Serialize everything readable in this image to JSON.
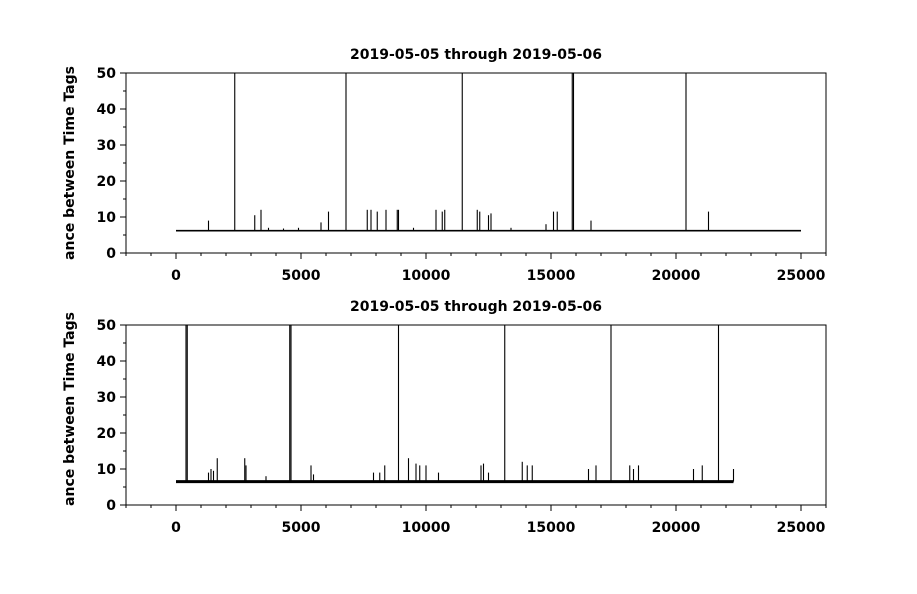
{
  "chart_data": [
    {
      "type": "line",
      "title": "2019-05-05 through 2019-05-06",
      "xlabel": "",
      "ylabel": "ance between Time Tags",
      "xlim": [
        -2000,
        26000
      ],
      "ylim": [
        0,
        50
      ],
      "xticks": [
        0,
        5000,
        10000,
        15000,
        20000,
        25000
      ],
      "yticks": [
        0,
        10,
        20,
        30,
        40,
        50
      ],
      "grid": false,
      "baseline": 6.2,
      "x_range": [
        0,
        25000
      ],
      "spikes": [
        {
          "x": 1300,
          "y": 9
        },
        {
          "x": 2350,
          "y": 50
        },
        {
          "x": 3150,
          "y": 10.5
        },
        {
          "x": 3400,
          "y": 12
        },
        {
          "x": 3700,
          "y": 7
        },
        {
          "x": 4300,
          "y": 6.8
        },
        {
          "x": 4900,
          "y": 7
        },
        {
          "x": 5800,
          "y": 8.5
        },
        {
          "x": 6100,
          "y": 11.5
        },
        {
          "x": 6800,
          "y": 50
        },
        {
          "x": 7650,
          "y": 12
        },
        {
          "x": 7800,
          "y": 12
        },
        {
          "x": 8050,
          "y": 11.5
        },
        {
          "x": 8400,
          "y": 12
        },
        {
          "x": 8850,
          "y": 12
        },
        {
          "x": 8900,
          "y": 12
        },
        {
          "x": 9500,
          "y": 7
        },
        {
          "x": 10400,
          "y": 12
        },
        {
          "x": 10650,
          "y": 11.5
        },
        {
          "x": 10750,
          "y": 12
        },
        {
          "x": 11450,
          "y": 50
        },
        {
          "x": 12050,
          "y": 12
        },
        {
          "x": 12150,
          "y": 11.5
        },
        {
          "x": 12500,
          "y": 10.5
        },
        {
          "x": 12600,
          "y": 11
        },
        {
          "x": 13400,
          "y": 7
        },
        {
          "x": 14800,
          "y": 8
        },
        {
          "x": 15100,
          "y": 11.5
        },
        {
          "x": 15250,
          "y": 11.5
        },
        {
          "x": 15850,
          "y": 50
        },
        {
          "x": 15900,
          "y": 50
        },
        {
          "x": 16600,
          "y": 9
        },
        {
          "x": 20400,
          "y": 50
        },
        {
          "x": 21300,
          "y": 11.5
        }
      ]
    },
    {
      "type": "line",
      "title": "2019-05-05 through 2019-05-06",
      "xlabel": "",
      "ylabel": "ance between Time Tags",
      "xlim": [
        -2000,
        26000
      ],
      "ylim": [
        0,
        50
      ],
      "xticks": [
        0,
        5000,
        10000,
        15000,
        20000,
        25000
      ],
      "yticks": [
        0,
        10,
        20,
        30,
        40,
        50
      ],
      "grid": false,
      "baseline": 6.5,
      "x_range": [
        0,
        22300
      ],
      "spikes": [
        {
          "x": 400,
          "y": 50
        },
        {
          "x": 450,
          "y": 50
        },
        {
          "x": 1300,
          "y": 9
        },
        {
          "x": 1400,
          "y": 10
        },
        {
          "x": 1500,
          "y": 9.5
        },
        {
          "x": 1650,
          "y": 13
        },
        {
          "x": 2750,
          "y": 13
        },
        {
          "x": 2800,
          "y": 11
        },
        {
          "x": 3600,
          "y": 8
        },
        {
          "x": 4550,
          "y": 50
        },
        {
          "x": 4600,
          "y": 50
        },
        {
          "x": 5400,
          "y": 11
        },
        {
          "x": 5500,
          "y": 8.5
        },
        {
          "x": 7900,
          "y": 9
        },
        {
          "x": 8150,
          "y": 9
        },
        {
          "x": 8350,
          "y": 11
        },
        {
          "x": 8900,
          "y": 50
        },
        {
          "x": 9300,
          "y": 13
        },
        {
          "x": 9600,
          "y": 11.5
        },
        {
          "x": 9750,
          "y": 11
        },
        {
          "x": 10000,
          "y": 11
        },
        {
          "x": 10500,
          "y": 9
        },
        {
          "x": 12200,
          "y": 11
        },
        {
          "x": 12300,
          "y": 11.5
        },
        {
          "x": 12500,
          "y": 9
        },
        {
          "x": 13150,
          "y": 50
        },
        {
          "x": 13850,
          "y": 12
        },
        {
          "x": 14050,
          "y": 11
        },
        {
          "x": 14250,
          "y": 11
        },
        {
          "x": 16500,
          "y": 10
        },
        {
          "x": 16800,
          "y": 11
        },
        {
          "x": 17400,
          "y": 50
        },
        {
          "x": 18150,
          "y": 11
        },
        {
          "x": 18300,
          "y": 10
        },
        {
          "x": 18500,
          "y": 11
        },
        {
          "x": 20700,
          "y": 10
        },
        {
          "x": 21050,
          "y": 11
        },
        {
          "x": 21700,
          "y": 50
        },
        {
          "x": 22300,
          "y": 10
        }
      ]
    }
  ]
}
